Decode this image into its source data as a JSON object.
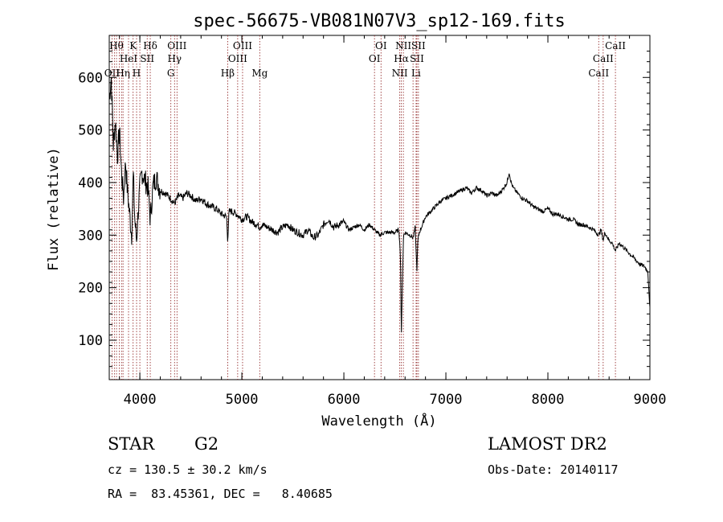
{
  "chart_data": {
    "type": "line",
    "title": "spec-56675-VB081N07V3_sp12-169.fits",
    "xlabel": "Wavelength (Å)",
    "ylabel": "Flux (relative)",
    "xlim": [
      3700,
      9000
    ],
    "ylim": [
      25,
      680
    ],
    "x_ticks": [
      4000,
      5000,
      6000,
      7000,
      8000,
      9000
    ],
    "y_ticks": [
      100,
      200,
      300,
      400,
      500,
      600
    ],
    "grid": false,
    "line_color": "#000000",
    "marker_color": "#8b1a1a",
    "series": [
      {
        "x": [
          3700,
          3720,
          3740,
          3760,
          3780,
          3800,
          3820,
          3840,
          3860,
          3880,
          3900,
          3920,
          3935,
          3950,
          3968,
          3985,
          4000,
          4020,
          4050,
          4080,
          4102,
          4130,
          4160,
          4200,
          4250,
          4300,
          4340,
          4380,
          4420,
          4460,
          4500,
          4550,
          4600,
          4650,
          4700,
          4750,
          4800,
          4850,
          4861,
          4875,
          4900,
          4950,
          5000,
          5050,
          5100,
          5150,
          5175,
          5200,
          5250,
          5300,
          5350,
          5400,
          5450,
          5500,
          5550,
          5600,
          5650,
          5700,
          5750,
          5800,
          5850,
          5900,
          5950,
          6000,
          6050,
          6100,
          6150,
          6200,
          6250,
          6300,
          6350,
          6400,
          6450,
          6500,
          6540,
          6555,
          6563,
          6570,
          6585,
          6600,
          6650,
          6680,
          6700,
          6708,
          6716,
          6725,
          6740,
          6760,
          6800,
          6850,
          6900,
          6950,
          7000,
          7050,
          7100,
          7150,
          7200,
          7250,
          7300,
          7350,
          7400,
          7450,
          7500,
          7550,
          7600,
          7620,
          7640,
          7660,
          7700,
          7750,
          7800,
          7850,
          7900,
          7950,
          8000,
          8050,
          8100,
          8150,
          8200,
          8250,
          8300,
          8350,
          8400,
          8450,
          8498,
          8520,
          8542,
          8560,
          8600,
          8630,
          8662,
          8700,
          8750,
          8800,
          8850,
          8900,
          8950,
          8980,
          9000
        ],
        "y": [
          560,
          600,
          470,
          520,
          450,
          500,
          420,
          370,
          440,
          380,
          340,
          300,
          420,
          330,
          290,
          350,
          390,
          420,
          405,
          390,
          330,
          395,
          410,
          385,
          380,
          370,
          360,
          375,
          370,
          380,
          375,
          365,
          370,
          360,
          355,
          350,
          340,
          335,
          290,
          345,
          345,
          340,
          330,
          335,
          325,
          320,
          315,
          320,
          315,
          310,
          305,
          315,
          320,
          310,
          305,
          300,
          310,
          295,
          300,
          320,
          330,
          315,
          320,
          325,
          310,
          315,
          320,
          310,
          320,
          310,
          300,
          305,
          305,
          305,
          310,
          260,
          100,
          180,
          300,
          305,
          300,
          295,
          315,
          265,
          235,
          290,
          305,
          315,
          335,
          345,
          355,
          365,
          370,
          375,
          380,
          385,
          390,
          380,
          390,
          385,
          375,
          380,
          375,
          385,
          400,
          420,
          400,
          390,
          380,
          370,
          365,
          355,
          350,
          345,
          350,
          340,
          340,
          335,
          330,
          330,
          320,
          320,
          315,
          310,
          300,
          310,
          290,
          305,
          290,
          285,
          270,
          285,
          275,
          265,
          255,
          245,
          240,
          230,
          160
        ]
      }
    ],
    "lines": [
      {
        "w": 3727,
        "labels": [
          "",
          "",
          "OII"
        ]
      },
      {
        "w": 3750,
        "labels": [
          "",
          "",
          ""
        ]
      },
      {
        "w": 3771,
        "labels": [
          "Hθ",
          "",
          ""
        ]
      },
      {
        "w": 3798,
        "labels": [
          "",
          "",
          ""
        ]
      },
      {
        "w": 3820,
        "labels": [
          "",
          "",
          ""
        ]
      },
      {
        "w": 3835,
        "labels": [
          "",
          "",
          "Hη"
        ]
      },
      {
        "w": 3889,
        "labels": [
          "",
          "HeI",
          ""
        ]
      },
      {
        "w": 3934,
        "labels": [
          "K",
          "",
          ""
        ]
      },
      {
        "w": 3968,
        "labels": [
          "",
          "",
          "H"
        ]
      },
      {
        "w": 4000,
        "labels": [
          "",
          "",
          ""
        ]
      },
      {
        "w": 4072,
        "labels": [
          "",
          "SII",
          ""
        ]
      },
      {
        "w": 4102,
        "labels": [
          "Hδ",
          "",
          ""
        ]
      },
      {
        "w": 4304,
        "labels": [
          "",
          "",
          "G"
        ]
      },
      {
        "w": 4340,
        "labels": [
          "",
          "Hγ",
          ""
        ]
      },
      {
        "w": 4364,
        "labels": [
          "OIII",
          "",
          ""
        ]
      },
      {
        "w": 4861,
        "labels": [
          "",
          "",
          "Hβ"
        ]
      },
      {
        "w": 4959,
        "labels": [
          "",
          "OIII",
          ""
        ]
      },
      {
        "w": 5007,
        "labels": [
          "OIII",
          "",
          ""
        ]
      },
      {
        "w": 5175,
        "labels": [
          "",
          "",
          "Mg"
        ]
      },
      {
        "w": 6300,
        "labels": [
          "",
          "OI",
          ""
        ]
      },
      {
        "w": 6364,
        "labels": [
          "OI",
          "",
          ""
        ]
      },
      {
        "w": 6548,
        "labels": [
          "",
          "",
          "NII"
        ]
      },
      {
        "w": 6563,
        "labels": [
          "",
          "Hα",
          ""
        ]
      },
      {
        "w": 6583,
        "labels": [
          "NII",
          "",
          ""
        ]
      },
      {
        "w": 6678,
        "labels": [
          "",
          "",
          ""
        ]
      },
      {
        "w": 6708,
        "labels": [
          "",
          "",
          "Li"
        ]
      },
      {
        "w": 6716,
        "labels": [
          "",
          "SII",
          ""
        ]
      },
      {
        "w": 6731,
        "labels": [
          "SII",
          "",
          ""
        ]
      },
      {
        "w": 8498,
        "labels": [
          "",
          "",
          "CaII"
        ]
      },
      {
        "w": 8542,
        "labels": [
          "",
          "CaII",
          ""
        ]
      },
      {
        "w": 8662,
        "labels": [
          "CaII",
          "",
          ""
        ]
      }
    ]
  },
  "info": {
    "object_class": "STAR",
    "subclass": "G2",
    "survey": "LAMOST DR2",
    "redshift": "cz = 130.5 ± 30.2 km/s",
    "obs_date": "Obs-Date: 20140117",
    "coords": "RA =  83.45361, DEC =   8.40685"
  }
}
